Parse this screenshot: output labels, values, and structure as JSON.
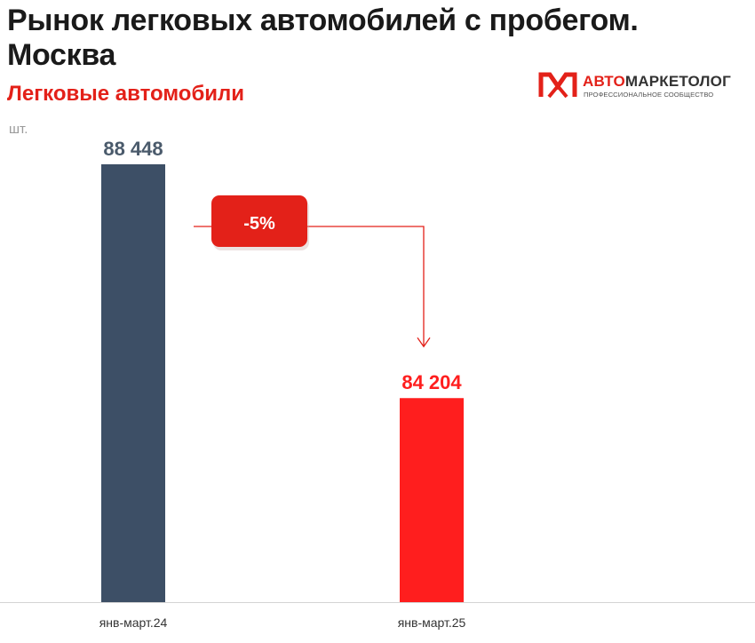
{
  "header": {
    "title": "Рынок легковых автомобилей с пробегом. Москва",
    "subtitle": "Легковые автомобили",
    "unit": "шт."
  },
  "logo": {
    "name_prefix": "АВТО",
    "name_suffix": "МАРКЕТОЛОГ",
    "tagline": "ПРОФЕССИОНАЛЬНОЕ СООБЩЕСТВО"
  },
  "colors": {
    "bar_2024": "#3d4f66",
    "bar_2025": "#ff1e1e",
    "accent": "#e32119",
    "label_2024": "#4a5a6b"
  },
  "chart_data": {
    "type": "bar",
    "categories": [
      "янв-март.24",
      "янв-март.25"
    ],
    "values": [
      88448,
      84204
    ],
    "value_labels": [
      "88 448",
      "84 204"
    ],
    "ylabel": "шт.",
    "ylim": [
      80500,
      88448
    ],
    "grid": false,
    "annotation": {
      "text": "-5%",
      "from": "янв-март.24",
      "to": "янв-март.25"
    }
  }
}
